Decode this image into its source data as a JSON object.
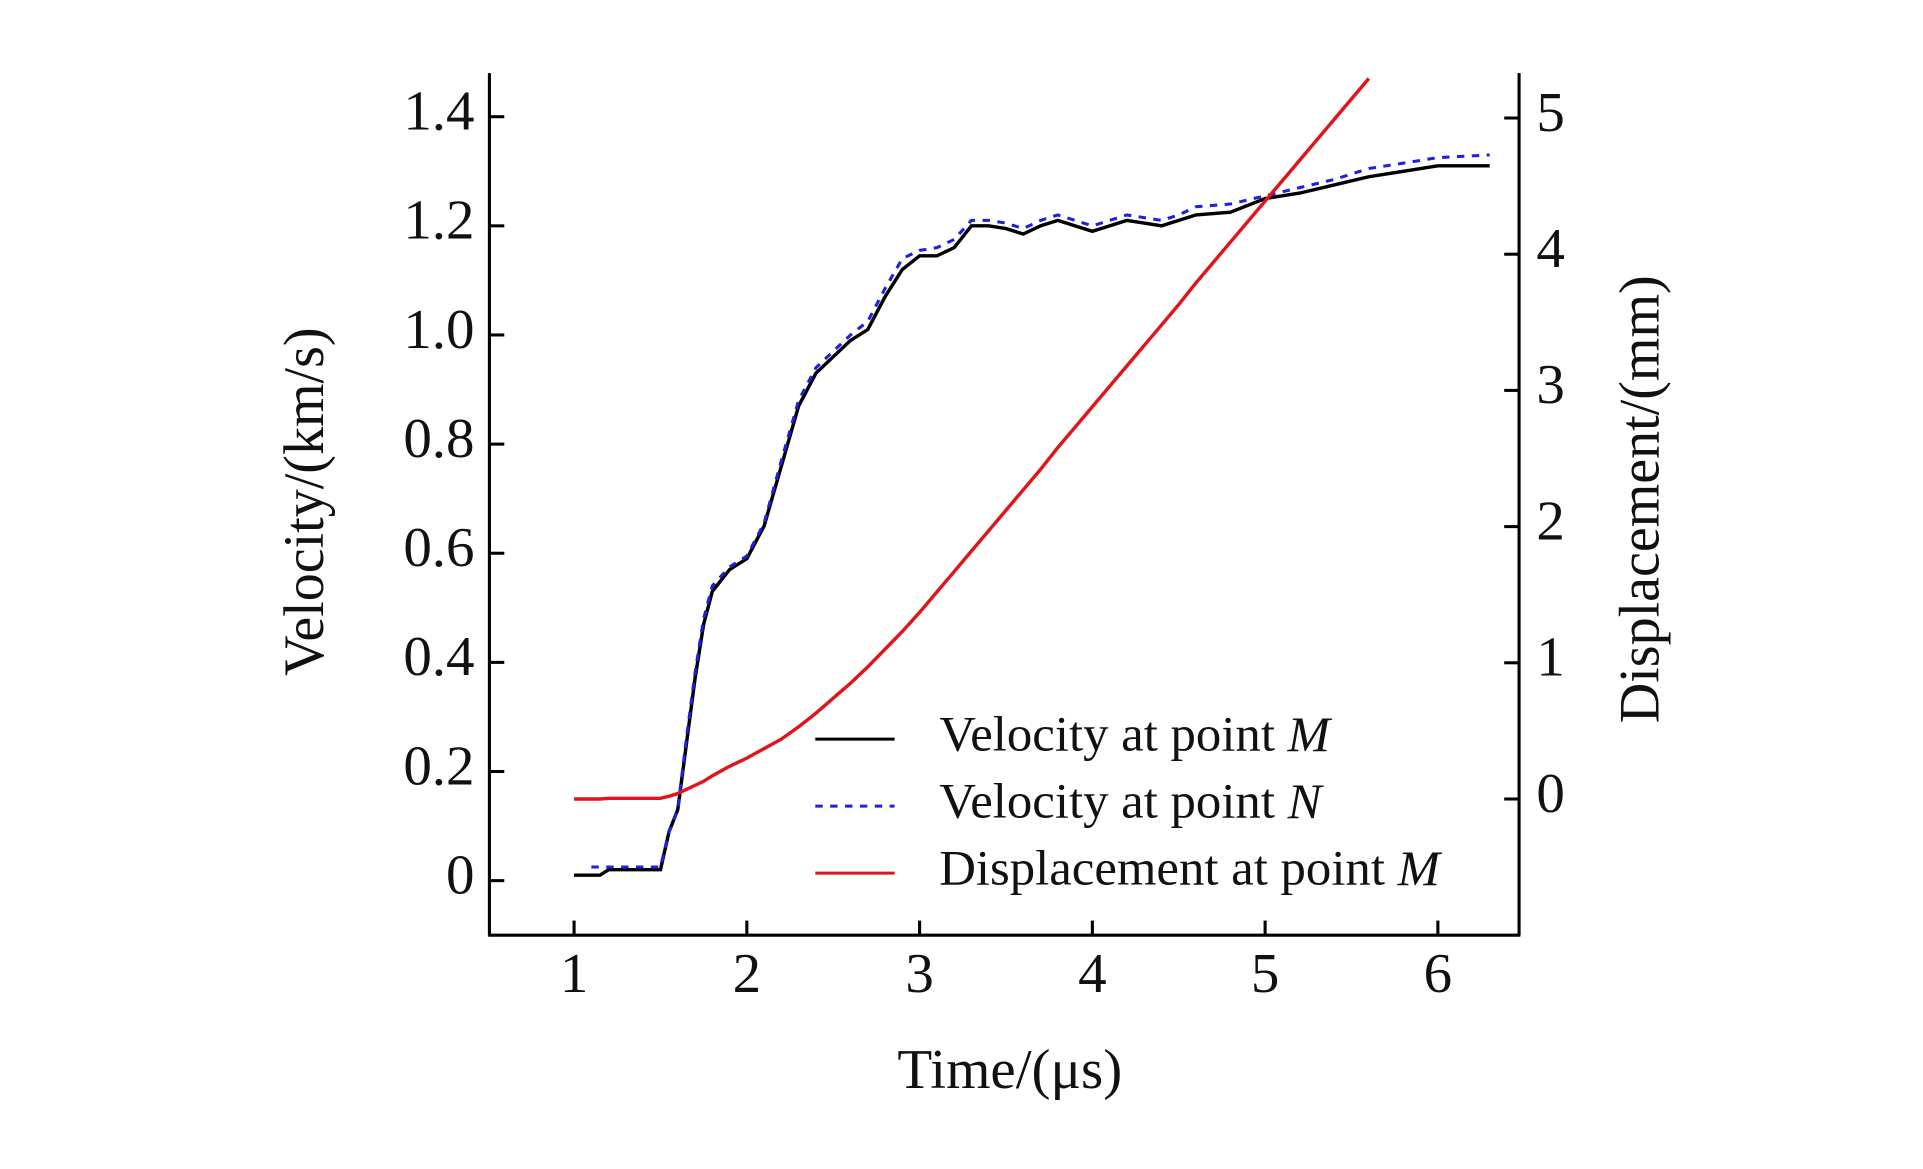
{
  "chart_data": {
    "type": "line",
    "x_label": "Time/(μs)",
    "y_label": "Velocity/(km/s)",
    "y2_label": "Displacement/(mm)",
    "x": [
      1.0,
      1.1,
      1.15,
      1.2,
      1.5,
      1.55,
      1.6,
      1.65,
      1.7,
      1.75,
      1.8,
      1.9,
      2.0,
      2.1,
      2.2,
      2.3,
      2.4,
      2.5,
      2.6,
      2.7,
      2.8,
      2.9,
      3.0,
      3.1,
      3.2,
      3.3,
      3.4,
      3.5,
      3.6,
      3.7,
      3.8,
      3.9,
      4.0,
      4.1,
      4.2,
      4.3,
      4.4,
      4.5,
      4.6,
      4.8,
      5.0,
      5.2,
      5.4,
      5.6,
      5.8,
      6.0,
      6.3
    ],
    "series": [
      {
        "name": "Velocity at point M",
        "color": "#000000",
        "style": "solid",
        "values": [
          0.01,
          0.01,
          0.01,
          0.02,
          0.02,
          0.09,
          0.13,
          0.25,
          0.37,
          0.47,
          0.53,
          0.57,
          0.59,
          0.65,
          0.76,
          0.87,
          0.93,
          0.96,
          0.99,
          1.01,
          1.07,
          1.12,
          1.145,
          1.145,
          1.16,
          1.2,
          1.2,
          1.195,
          1.185,
          1.2,
          1.21,
          1.2,
          1.19,
          1.2,
          1.21,
          1.205,
          1.2,
          1.21,
          1.22,
          1.225,
          1.25,
          1.26,
          1.275,
          1.29,
          1.3,
          1.31,
          1.31
        ]
      },
      {
        "name": "Velocity at point N",
        "color": "#1f1fe0",
        "style": "dashed",
        "values": [
          null,
          0.025,
          0.025,
          0.025,
          0.025,
          0.09,
          0.13,
          0.26,
          0.38,
          0.48,
          0.54,
          0.575,
          0.595,
          0.655,
          0.77,
          0.88,
          0.94,
          0.97,
          1.0,
          1.025,
          1.085,
          1.14,
          1.155,
          1.16,
          1.175,
          1.21,
          1.21,
          1.205,
          1.195,
          1.21,
          1.22,
          1.21,
          1.2,
          1.21,
          1.22,
          1.215,
          1.21,
          1.22,
          1.235,
          1.24,
          1.255,
          1.27,
          1.285,
          1.305,
          1.315,
          1.325,
          1.33
        ]
      },
      {
        "name": "Displacement at point M",
        "color": "#e0151b",
        "style": "solid",
        "axis": "y2",
        "values": [
          0,
          0,
          0,
          0.005,
          0.005,
          0.02,
          0.04,
          0.07,
          0.1,
          0.13,
          0.17,
          0.24,
          0.3,
          0.37,
          0.44,
          0.53,
          0.63,
          0.74,
          0.85,
          0.97,
          1.1,
          1.23,
          1.37,
          1.52,
          1.67,
          1.82,
          1.97,
          2.12,
          2.27,
          2.42,
          2.58,
          2.73,
          2.88,
          3.03,
          3.18,
          3.33,
          3.48,
          3.63,
          3.79,
          4.09,
          4.39,
          4.69,
          4.99,
          5.29,
          null,
          null,
          null
        ]
      }
    ],
    "xlim": [
      0.51,
      6.47
    ],
    "xticks": [
      1,
      2,
      3,
      4,
      5,
      6
    ],
    "ylim": [
      -0.1,
      1.48
    ],
    "yticks": [
      {
        "value": 0,
        "label": "0"
      },
      {
        "value": 0.2,
        "label": "0.2"
      },
      {
        "value": 0.4,
        "label": "0.4"
      },
      {
        "value": 0.6,
        "label": "0.6"
      },
      {
        "value": 0.8,
        "label": "0.8"
      },
      {
        "value": 1.0,
        "label": "1.0"
      },
      {
        "value": 1.2,
        "label": "1.2"
      },
      {
        "value": 1.4,
        "label": "1.4"
      }
    ],
    "y2lim": [
      -1,
      5.33
    ],
    "y2ticks": [
      0,
      1,
      2,
      3,
      4,
      5
    ],
    "legend": "lower right",
    "grid": false
  }
}
